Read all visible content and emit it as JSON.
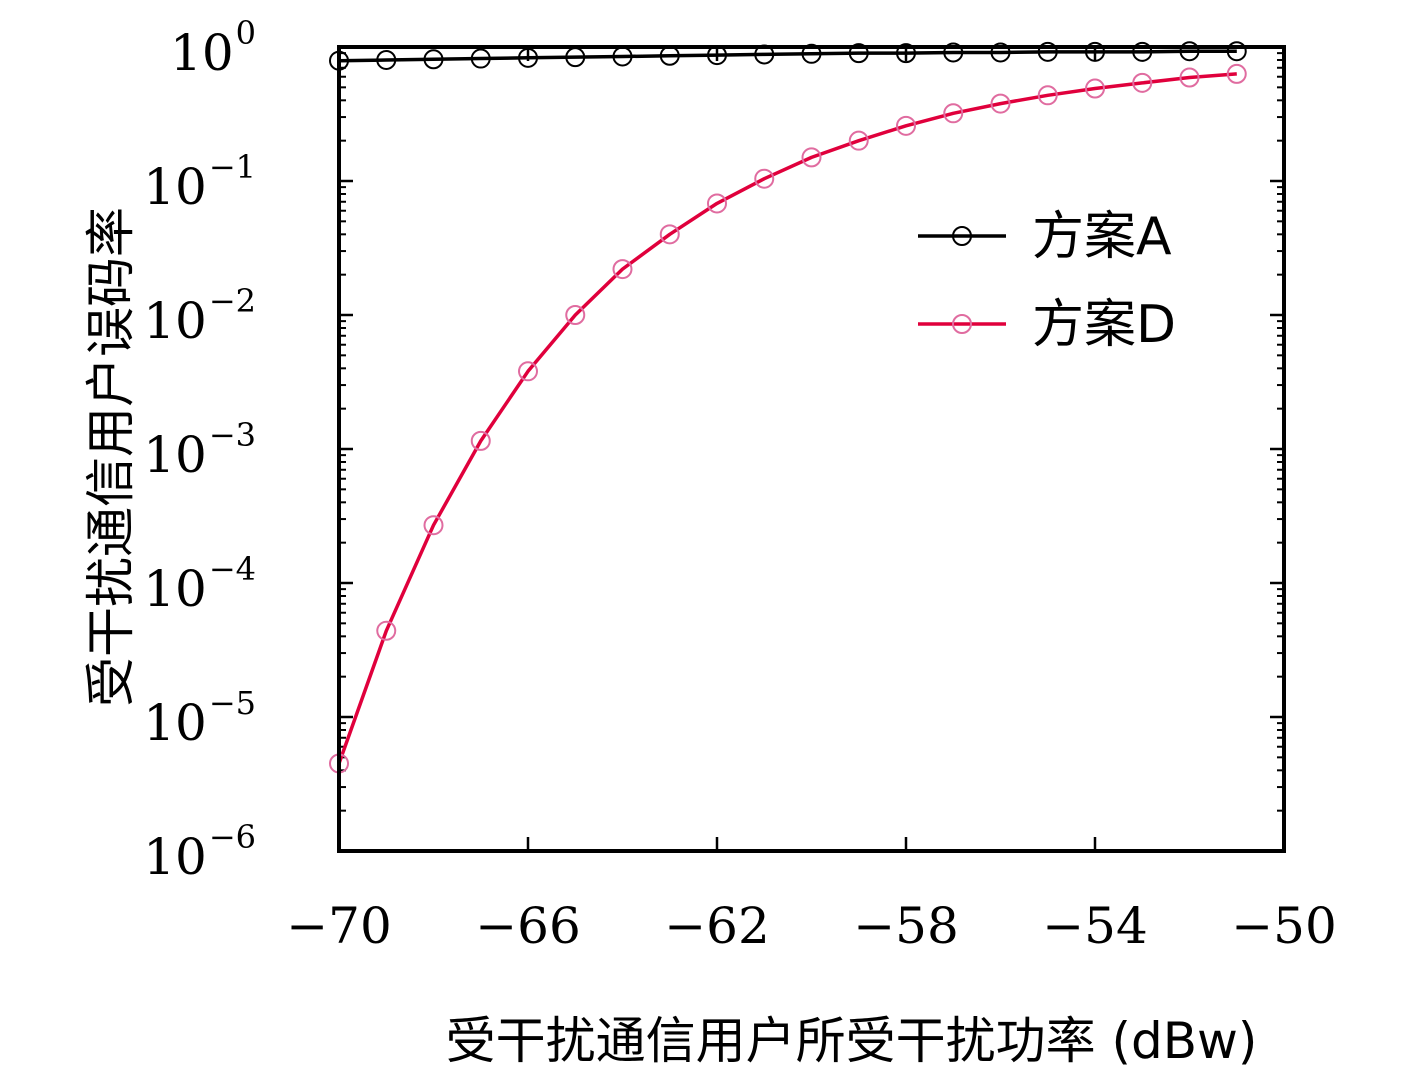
{
  "chart_data": {
    "type": "line",
    "title": "",
    "xlabel": "受干扰通信用户所受干扰功率 (dBw)",
    "ylabel": "受干扰通信用户误码率",
    "xlim": [
      -70,
      -50
    ],
    "ylim": [
      1e-06,
      1
    ],
    "yscale": "log",
    "grid": false,
    "legend_position": "upper-right",
    "x_ticks": [
      "−70",
      "−66",
      "−62",
      "−58",
      "−54",
      "−50"
    ],
    "y_ticks": [
      {
        "base": "10",
        "exp": "0"
      },
      {
        "base": "10",
        "exp": "−1"
      },
      {
        "base": "10",
        "exp": "−2"
      },
      {
        "base": "10",
        "exp": "−3"
      },
      {
        "base": "10",
        "exp": "−4"
      },
      {
        "base": "10",
        "exp": "−5"
      },
      {
        "base": "10",
        "exp": "−6"
      }
    ],
    "x": [
      -70,
      -69,
      -68,
      -67,
      -66,
      -65,
      -64,
      -63,
      -62,
      -61,
      -60,
      -59,
      -58,
      -57,
      -56,
      -55,
      -54,
      -53,
      -52,
      -51
    ],
    "series": [
      {
        "name": "方案A",
        "color": "#000000",
        "marker": "circle",
        "marker_color": "#000000",
        "values": [
          0.79,
          0.8,
          0.81,
          0.82,
          0.83,
          0.84,
          0.85,
          0.86,
          0.87,
          0.88,
          0.89,
          0.9,
          0.9,
          0.91,
          0.91,
          0.92,
          0.92,
          0.92,
          0.93,
          0.93
        ]
      },
      {
        "name": "方案D",
        "color": "#e0003c",
        "marker": "circle",
        "marker_color": "#e06ca0",
        "values": [
          4.5e-06,
          4.4e-05,
          0.00027,
          0.00115,
          0.0038,
          0.01,
          0.022,
          0.04,
          0.068,
          0.104,
          0.15,
          0.2,
          0.258,
          0.32,
          0.378,
          0.436,
          0.49,
          0.54,
          0.592,
          0.63
        ]
      }
    ]
  }
}
